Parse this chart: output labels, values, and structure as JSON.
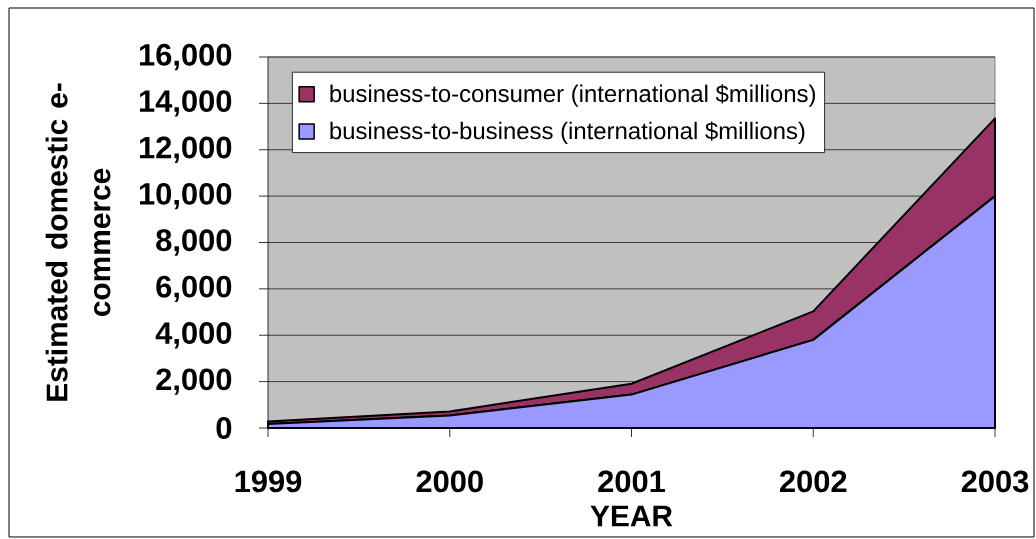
{
  "chart_data": {
    "type": "area",
    "stacked": true,
    "xlabel": "YEAR",
    "ylabel": "Estimated domestic e-commerce",
    "categories": [
      "1999",
      "2000",
      "2001",
      "2002",
      "2003"
    ],
    "series": [
      {
        "name": "business-to-business (international $millions)",
        "color": "#9999ff",
        "values": [
          170,
          540,
          1440,
          3800,
          10000
        ]
      },
      {
        "name": "business-to-consumer (international $millions)",
        "color": "#993366",
        "values": [
          110,
          170,
          470,
          1230,
          3350
        ]
      }
    ],
    "ylim": [
      0,
      16000
    ],
    "yticks": [
      0,
      {
        "value": 2000,
        "label": "2,000"
      },
      {
        "value": 4000,
        "label": "4,000"
      },
      {
        "value": 6000,
        "label": "6,000"
      },
      {
        "value": 8000,
        "label": "8,000"
      },
      {
        "value": 10000,
        "label": "10,000"
      },
      {
        "value": 12000,
        "label": "12,000"
      },
      {
        "value": 14000,
        "label": "14,000"
      },
      {
        "value": 16000,
        "label": "16,000"
      }
    ],
    "grid": "y",
    "legend": "top left"
  }
}
